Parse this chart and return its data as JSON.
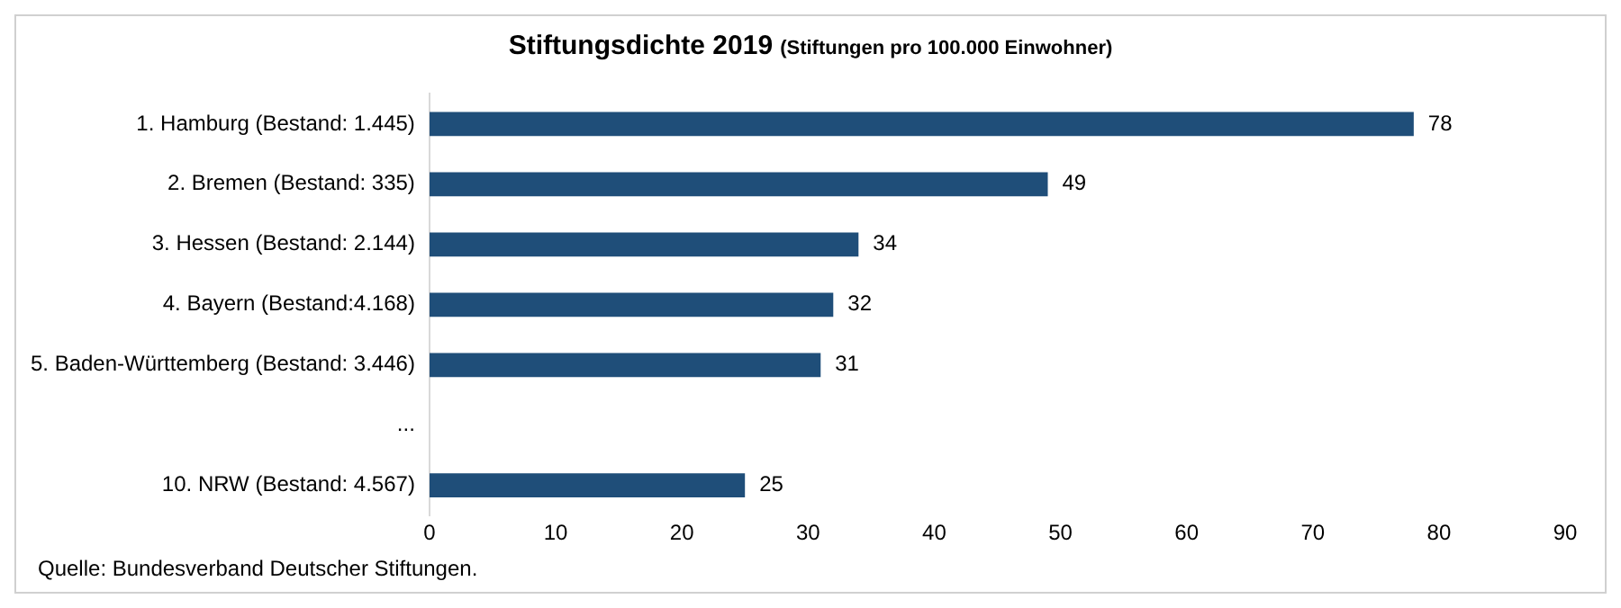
{
  "chart_data": {
    "type": "bar",
    "orientation": "horizontal",
    "title": "Stiftungsdichte 2019",
    "subtitle": "(Stiftungen pro 100.000 Einwohner)",
    "categories": [
      "1. Hamburg (Bestand: 1.445)",
      "2. Bremen (Bestand: 335)",
      "3. Hessen (Bestand: 2.144)",
      "4. Bayern (Bestand:4.168)",
      "5. Baden-Württemberg (Bestand: 3.446)",
      "...",
      "10. NRW (Bestand: 4.567)"
    ],
    "values": [
      78,
      49,
      34,
      32,
      31,
      null,
      25
    ],
    "color": "#1f4e79",
    "xlim": [
      0,
      90
    ],
    "xticks": [
      0,
      10,
      20,
      30,
      40,
      50,
      60,
      70,
      80,
      90
    ],
    "grid": false,
    "legend": false,
    "data_labels": true,
    "annotations": [
      "Quelle: Bundesverband  Deutscher Stiftungen."
    ]
  }
}
